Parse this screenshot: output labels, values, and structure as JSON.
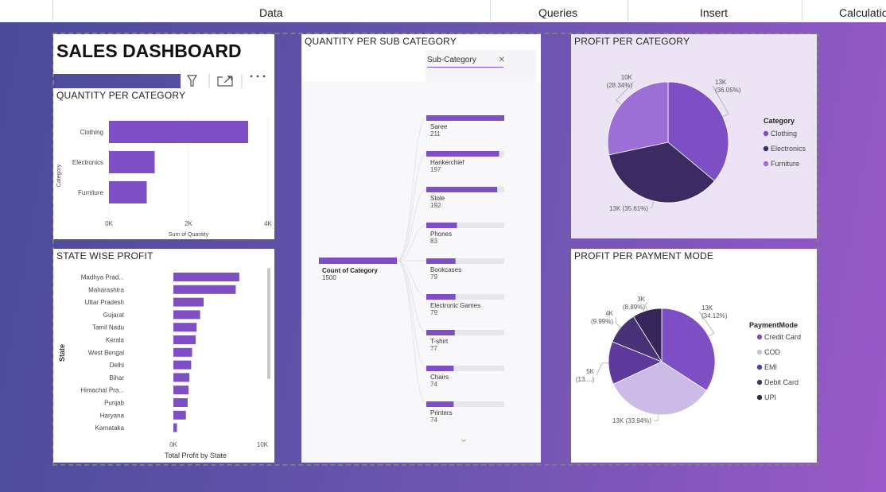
{
  "ribbon": {
    "tabs": [
      "Data",
      "Queries",
      "Insert",
      "Calculations"
    ]
  },
  "dashboard": {
    "title": "SALES DASHBOARD"
  },
  "icons": [
    "filter-icon",
    "focus-mode-icon",
    "more-options-icon"
  ],
  "colors": {
    "purple": "#7e4ec5",
    "dark": "#3c2a63",
    "mid": "#9b6fd6",
    "light": "#cbbbe6"
  },
  "subcategory": {
    "chip_label": "Sub-Category",
    "chip_close": "✕",
    "root_label": "Count of Category",
    "root_value": "1500",
    "scroll_icon": "⌄"
  },
  "chart_data": [
    {
      "id": "qty-per-category",
      "type": "bar",
      "orientation": "horizontal",
      "title": "QUANTITY PER CATEGORY",
      "categories": [
        "Clothing",
        "Electronics",
        "Furniture"
      ],
      "values": [
        3500,
        1150,
        950
      ],
      "xlabel": "Sum of Quantity",
      "ylabel": "Category",
      "xlim": [
        0,
        4000
      ],
      "xticks": [
        "0K",
        "2K",
        "4K"
      ]
    },
    {
      "id": "state-wise-profit",
      "type": "bar",
      "orientation": "horizontal",
      "title": "STATE WISE PROFIT",
      "categories": [
        "Madhya Prad...",
        "Maharashtra",
        "Uttar Pradesh",
        "Gujarat",
        "Tamil Nadu",
        "Kerala",
        "West Bengal",
        "Delhi",
        "Bihar",
        "Himachal Pra...",
        "Punjab",
        "Haryana",
        "Karnataka"
      ],
      "values": [
        7400,
        7000,
        3400,
        3000,
        2600,
        2500,
        2100,
        2000,
        1800,
        1700,
        1600,
        1400,
        400
      ],
      "xlabel": "Total Profit by State",
      "ylabel": "State",
      "xlim": [
        0,
        10000
      ],
      "xticks": [
        "0K",
        "10K"
      ]
    },
    {
      "id": "qty-per-subcategory",
      "type": "bar",
      "title": "QUANTITY PER SUB CATEGORY",
      "categories": [
        "Saree",
        "Hankerchief",
        "Stole",
        "Phones",
        "Bookcases",
        "Electronic Games",
        "T-shirt",
        "Chairs",
        "Printers"
      ],
      "values": [
        211,
        197,
        192,
        83,
        79,
        79,
        77,
        74,
        74
      ],
      "max": 211
    },
    {
      "id": "profit-per-category",
      "type": "pie",
      "title": "PROFIT PER CATEGORY",
      "legend_title": "Category",
      "labels": [
        "Clothing",
        "Electronics",
        "Furniture"
      ],
      "values": [
        36.05,
        35.61,
        28.34
      ],
      "data_labels": [
        [
          "13K",
          "(36.05%)"
        ],
        [
          "13K (35.61%)"
        ],
        [
          "10K",
          "(28.34%)"
        ]
      ],
      "colors": [
        "#7e4ec5",
        "#3c2a63",
        "#9b6fd6"
      ]
    },
    {
      "id": "profit-per-payment-mode",
      "type": "pie",
      "title": "PROFIT PER PAYMENT MODE",
      "legend_title": "PaymentMode",
      "labels": [
        "Credit Card",
        "COD",
        "EMI",
        "Debit Card",
        "UPI"
      ],
      "values": [
        34.12,
        33.94,
        13.06,
        9.99,
        8.89
      ],
      "data_labels": [
        [
          "13K",
          "(34.12%)"
        ],
        [
          "13K (33.94%)"
        ],
        [
          "5K",
          "(13....)"
        ],
        [
          "4K",
          "(9.99%)"
        ],
        [
          "3K",
          "(8.89%)"
        ]
      ],
      "colors": [
        "#7e4ec5",
        "#cbbbe6",
        "#5e3a9c",
        "#4a3278",
        "#372659"
      ]
    }
  ]
}
